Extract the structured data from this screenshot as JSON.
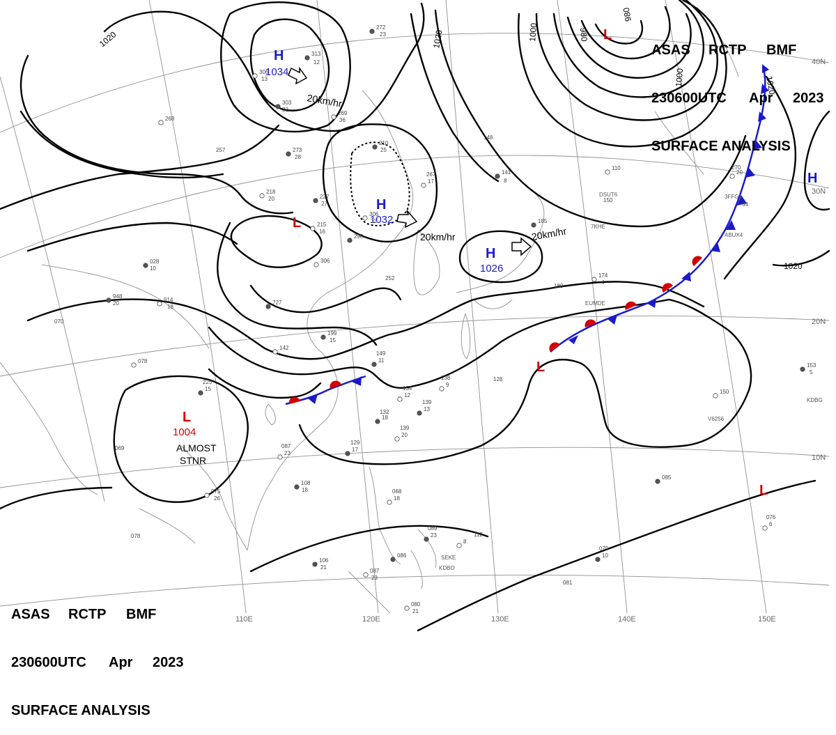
{
  "header": {
    "line1": [
      "ASAS",
      "RCTP",
      "BMF"
    ],
    "line2": [
      "230600UTC",
      "Apr",
      "2023"
    ],
    "line3": "SURFACE ANALYSIS"
  },
  "colors": {
    "high": "#1a1acc",
    "low": "#d40000",
    "isobar": "#000000",
    "grid": "#8a8a8a",
    "coast": "#9a9a9a",
    "cold_front": "#1a1acc",
    "warm_front": "#d40000"
  },
  "isobar_labels": [
    {
      "text": "1020",
      "id": "1020-nw"
    },
    {
      "text": "1020",
      "id": "1020-n"
    },
    {
      "text": "1000",
      "id": "1000-a"
    },
    {
      "text": "980",
      "id": "980-a"
    },
    {
      "text": "980",
      "id": "980-b"
    },
    {
      "text": "1000",
      "id": "1000-b"
    },
    {
      "text": "1020",
      "id": "1020-ne"
    },
    {
      "text": "1020",
      "id": "1020-e"
    }
  ],
  "pressure_centers": [
    {
      "type": "H",
      "value": "1034",
      "id": "h-1034"
    },
    {
      "type": "H",
      "value": "1032",
      "id": "h-1032"
    },
    {
      "type": "H",
      "value": "1026",
      "id": "h-1026"
    },
    {
      "type": "H",
      "value": "",
      "id": "h-east"
    },
    {
      "type": "L",
      "value": "1004",
      "id": "l-1004"
    },
    {
      "type": "L",
      "value": "",
      "id": "l-north"
    },
    {
      "type": "L",
      "value": "",
      "id": "l-inland"
    },
    {
      "type": "L",
      "value": "",
      "id": "l-front"
    },
    {
      "type": "L",
      "value": "",
      "id": "l-se"
    }
  ],
  "movement_labels": [
    "20km/hr",
    "20km/hr",
    "20km/hr"
  ],
  "annotations": {
    "stnr_line1": "ALMOST",
    "stnr_line2": "STNR"
  },
  "station_codes": [
    "DSUT6",
    "3FFG1",
    "7KHE",
    "ABUX4",
    "EUMDE",
    "KDBG",
    "V6256",
    "SEKE",
    "KDBO"
  ],
  "longitude_labels": [
    "110E",
    "120E",
    "130E",
    "140E",
    "150E"
  ],
  "latitude_labels": [
    "40N",
    "30N",
    "20N",
    "10N"
  ],
  "station_plots": [
    "313",
    "12",
    "306",
    "13",
    "303",
    "22",
    "269",
    "36",
    "272",
    "23",
    "268",
    "257",
    "273",
    "28",
    "218",
    "20",
    "227",
    "27",
    "215",
    "16",
    "210",
    "25",
    "306",
    "32",
    "298",
    "267",
    "17",
    "148",
    "141",
    "8",
    "110",
    "150",
    "185",
    "270",
    "20",
    "54",
    "028",
    "10",
    "306",
    "252",
    "948",
    "20",
    "914",
    "18",
    "727",
    "180",
    "174",
    "4",
    "199",
    "15",
    "142",
    "149",
    "11",
    "070",
    "078",
    "225",
    "15",
    "154",
    "12",
    "139",
    "13",
    "138",
    "9",
    "128",
    "153",
    "5",
    "150",
    "132",
    "18",
    "139",
    "20",
    "129",
    "17",
    "087",
    "23",
    "069",
    "108",
    "18",
    "075",
    "26",
    "085",
    "068",
    "18",
    "089",
    "23",
    "112",
    "8",
    "079",
    "10",
    "076",
    "6",
    "078",
    "106",
    "21",
    "087",
    "23",
    "086",
    "081",
    "080",
    "21"
  ]
}
